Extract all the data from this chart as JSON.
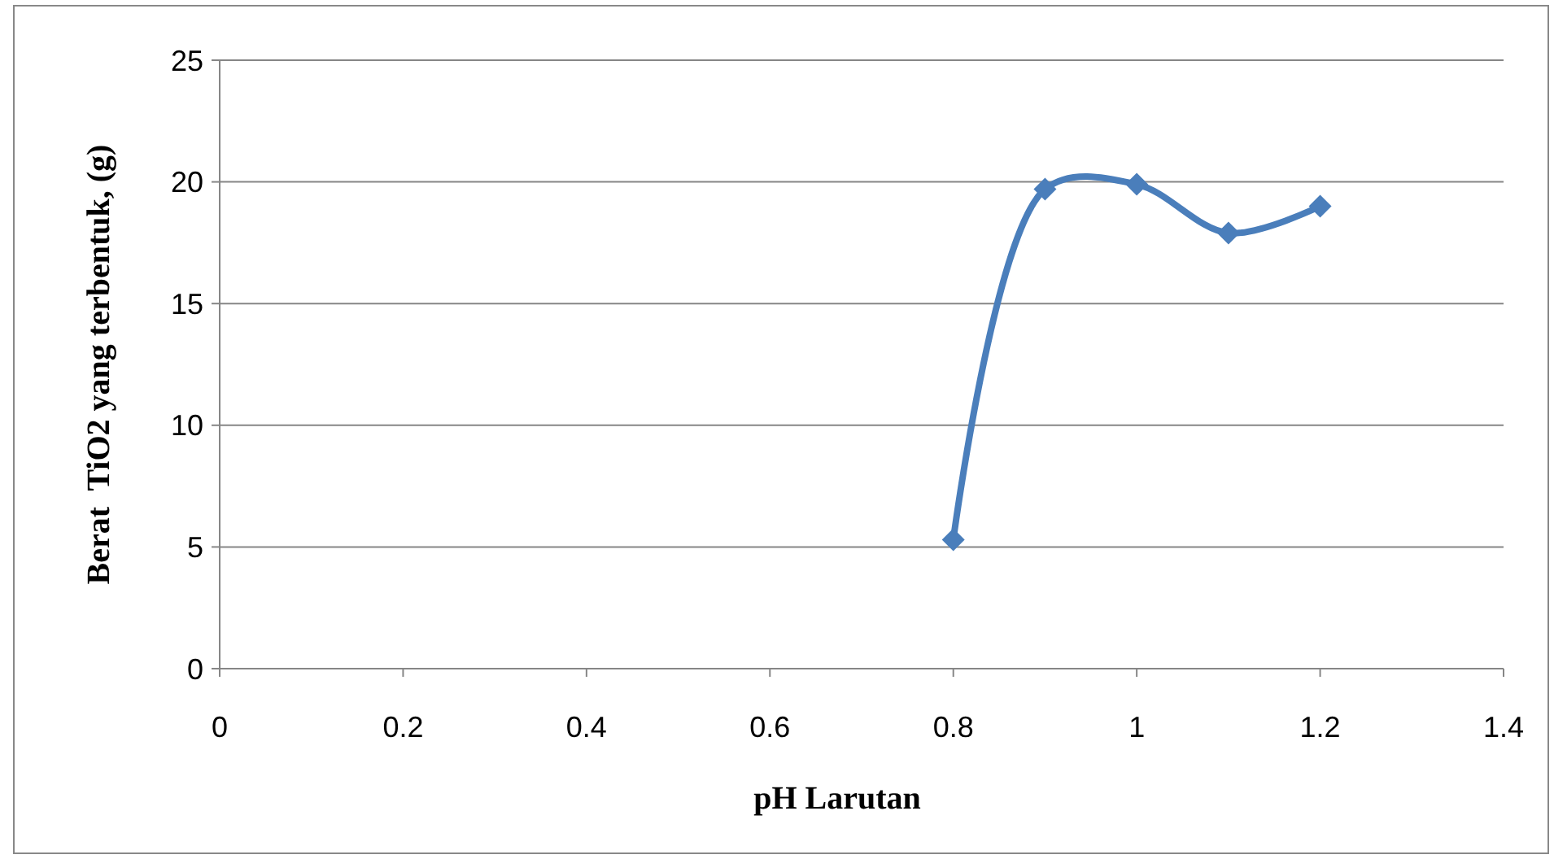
{
  "chart_data": {
    "type": "line",
    "xlabel": "pH Larutan",
    "ylabel": "Berat  TiO2 yang terbentuk, (g)",
    "x": [
      0.8,
      0.9,
      1,
      1.1,
      1.2
    ],
    "series": [
      {
        "color": "#4a7ebb",
        "values": [
          5.3,
          19.7,
          19.9,
          17.9,
          19.0
        ]
      }
    ],
    "xlim": [
      0,
      1.4
    ],
    "xticks": [
      0,
      0.2,
      0.4,
      0.6,
      0.8,
      1,
      1.2,
      1.4
    ],
    "ylim": [
      0,
      25
    ],
    "yticks": [
      0,
      5,
      10,
      15,
      20,
      25
    ],
    "grid": "y",
    "marker": "diamond",
    "line_style": "solid"
  }
}
